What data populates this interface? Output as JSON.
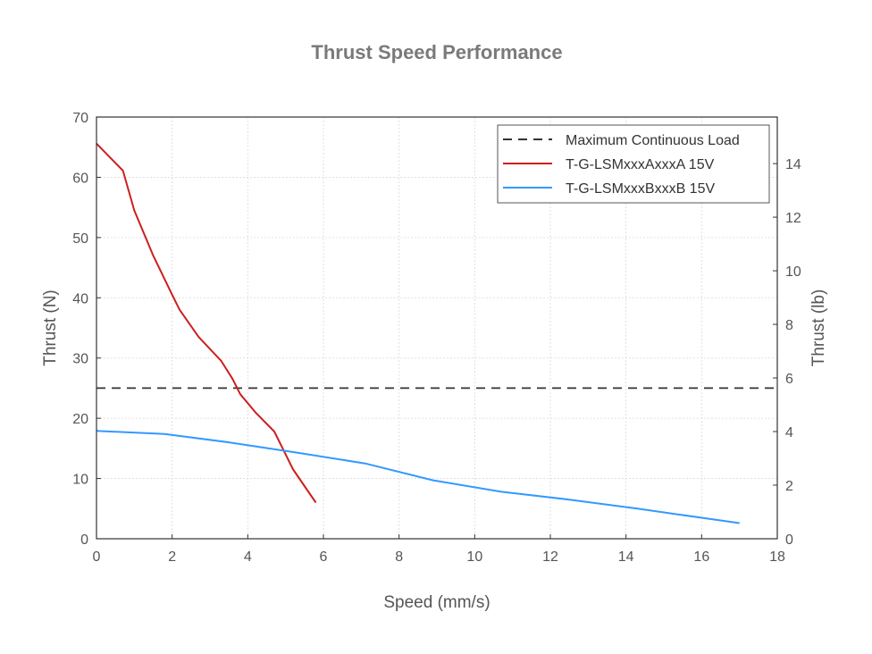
{
  "chart_data": {
    "type": "line",
    "title": "Thrust Speed Performance",
    "xlabel": "Speed (mm/s)",
    "ylabel": "Thrust (N)",
    "y2label": "Thrust (lb)",
    "xlim": [
      0,
      18
    ],
    "ylim": [
      0,
      70
    ],
    "y2lim": [
      0,
      15.737
    ],
    "xticks": [
      "0",
      "2",
      "4",
      "6",
      "8",
      "10",
      "12",
      "14",
      "16",
      "18"
    ],
    "yticks": [
      "0",
      "10",
      "20",
      "30",
      "40",
      "50",
      "60",
      "70"
    ],
    "y2ticks": [
      "0",
      "2",
      "4",
      "6",
      "8",
      "10",
      "12",
      "14"
    ],
    "grid": true,
    "legend_position": "top-right",
    "series": [
      {
        "name": "Maximum Continuous Load",
        "color": "#333333",
        "style": "dashed",
        "x": [
          0,
          18
        ],
        "y": [
          25,
          25
        ]
      },
      {
        "name": "T-G-LSMxxxAxxxA 15V",
        "color": "#cc1f1f",
        "style": "solid",
        "x": [
          0,
          0.7,
          1.0,
          1.5,
          2.0,
          2.2,
          2.7,
          3.3,
          3.6,
          3.8,
          4.2,
          4.7,
          5.2,
          5.8
        ],
        "y": [
          65.6,
          61.1,
          54.5,
          47.0,
          40.5,
          38.0,
          33.5,
          29.5,
          26.5,
          24.0,
          21.0,
          17.8,
          11.5,
          6.0
        ]
      },
      {
        "name": "T-G-LSMxxxBxxxB 15V",
        "color": "#3399ff",
        "style": "solid",
        "x": [
          0,
          1.8,
          3.5,
          5.3,
          7.1,
          8.9,
          10.7,
          12.5,
          14.3,
          17.0
        ],
        "y": [
          17.9,
          17.4,
          16.0,
          14.3,
          12.5,
          9.7,
          7.8,
          6.5,
          5.0,
          2.6
        ]
      }
    ]
  }
}
